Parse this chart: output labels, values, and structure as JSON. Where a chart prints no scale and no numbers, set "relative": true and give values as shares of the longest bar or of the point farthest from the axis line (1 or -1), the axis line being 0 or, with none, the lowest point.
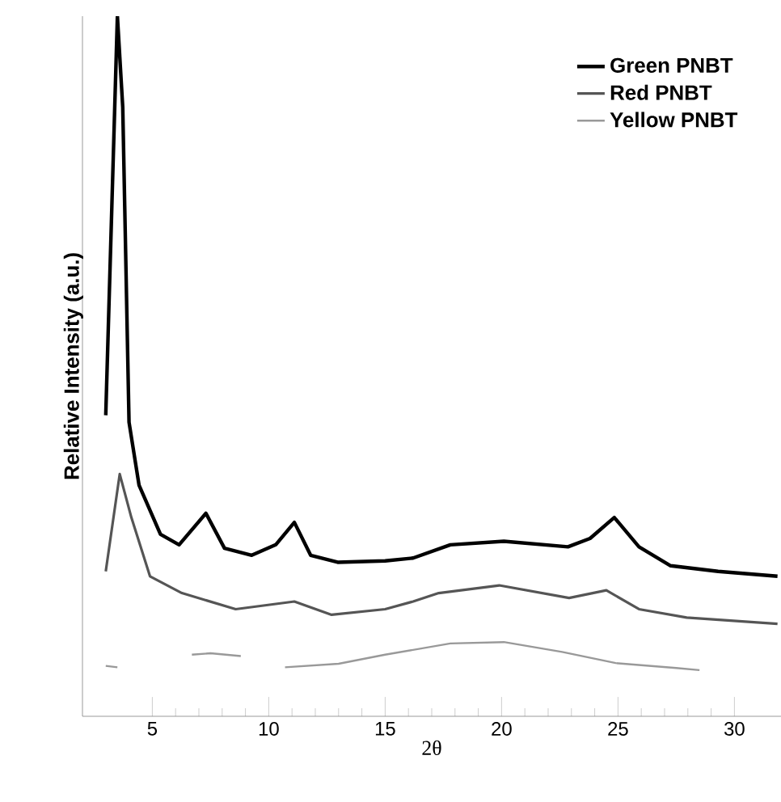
{
  "chart_data": {
    "type": "line",
    "relative": true,
    "xlabel": "2θ",
    "ylabel": "Relative Intensity (a.u.)",
    "xlim": [
      2,
      32
    ],
    "xticks": [
      5,
      10,
      15,
      20,
      25,
      30
    ],
    "legend": "top right",
    "line_style": "solid",
    "series": [
      {
        "name": "Green PNBT",
        "color": "#000000",
        "x": [
          3.0,
          3.5,
          3.73,
          4.0,
          4.43,
          5.35,
          6.15,
          7.3,
          8.1,
          9.27,
          10.3,
          11.1,
          11.8,
          12.96,
          15.0,
          16.2,
          17.8,
          20.1,
          22.85,
          23.8,
          24.84,
          25.9,
          27.26,
          29.3,
          31.85
        ],
        "values": [
          0.43,
          1.0,
          0.87,
          0.42,
          0.33,
          0.26,
          0.245,
          0.29,
          0.24,
          0.23,
          0.245,
          0.277,
          0.23,
          0.22,
          0.222,
          0.226,
          0.245,
          0.25,
          0.242,
          0.254,
          0.284,
          0.242,
          0.215,
          0.207,
          0.2
        ]
      },
      {
        "name": "Red PNBT",
        "color": "#555555",
        "x": [
          3.0,
          3.6,
          4.1,
          4.9,
          6.27,
          8.58,
          11.1,
          12.7,
          15.0,
          16.2,
          17.3,
          19.9,
          22.9,
          24.5,
          25.9,
          27.95,
          31.85
        ],
        "values": [
          0.207,
          0.346,
          0.284,
          0.2,
          0.176,
          0.153,
          0.164,
          0.145,
          0.153,
          0.164,
          0.176,
          0.187,
          0.169,
          0.18,
          0.153,
          0.141,
          0.132
        ]
      },
      {
        "name": "Yellow PNBT",
        "color": "#999999",
        "x": [
          3.0,
          3.5,
          3.7,
          6.7,
          7.5,
          8.8,
          9.5,
          10.7,
          13.0,
          15.0,
          17.8,
          20.1,
          22.6,
          24.9,
          27.5,
          28.5
        ],
        "values": [
          0.072,
          0.07,
          null,
          0.088,
          0.09,
          0.086,
          null,
          0.07,
          0.075,
          0.088,
          0.104,
          0.106,
          0.092,
          0.076,
          0.069,
          0.066
        ]
      }
    ]
  }
}
